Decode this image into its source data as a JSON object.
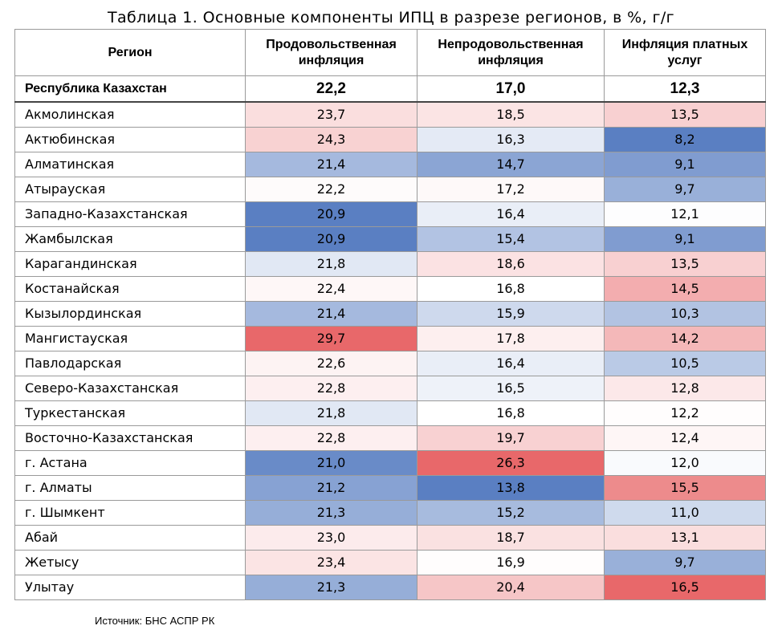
{
  "title": "Таблица 1. Основные компоненты ИПЦ в разрезе регионов, в %, г/г",
  "columns": [
    "Регион",
    "Продовольственная инфляция",
    "Непродовольственная инфляция",
    "Инфляция платных услуг"
  ],
  "total": {
    "region": "Республика Казахстан",
    "values": [
      "22,2",
      "17,0",
      "12,3"
    ]
  },
  "rows": [
    {
      "region": "Акмолинская",
      "values": [
        "23,7",
        "18,5",
        "13,5"
      ]
    },
    {
      "region": "Актюбинская",
      "values": [
        "24,3",
        "16,3",
        "8,2"
      ]
    },
    {
      "region": "Алматинская",
      "values": [
        "21,4",
        "14,7",
        "9,1"
      ]
    },
    {
      "region": "Атырауская",
      "values": [
        "22,2",
        "17,2",
        "9,7"
      ]
    },
    {
      "region": "Западно-Казахстанская",
      "values": [
        "20,9",
        "16,4",
        "12,1"
      ]
    },
    {
      "region": "Жамбылская",
      "values": [
        "20,9",
        "15,4",
        "9,1"
      ]
    },
    {
      "region": "Карагандинская",
      "values": [
        "21,8",
        "18,6",
        "13,5"
      ]
    },
    {
      "region": "Костанайская",
      "values": [
        "22,4",
        "16,8",
        "14,5"
      ]
    },
    {
      "region": "Кызылординская",
      "values": [
        "21,4",
        "15,9",
        "10,3"
      ]
    },
    {
      "region": "Мангистауская",
      "values": [
        "29,7",
        "17,8",
        "14,2"
      ]
    },
    {
      "region": "Павлодарская",
      "values": [
        "22,6",
        "16,4",
        "10,5"
      ]
    },
    {
      "region": "Северо-Казахстанская",
      "values": [
        "22,8",
        "16,5",
        "12,8"
      ]
    },
    {
      "region": "Туркестанская",
      "values": [
        "21,8",
        "16,8",
        "12,2"
      ]
    },
    {
      "region": "Восточно-Казахстанская",
      "values": [
        "22,8",
        "19,7",
        "12,4"
      ]
    },
    {
      "region": "г. Астана",
      "values": [
        "21,0",
        "26,3",
        "12,0"
      ]
    },
    {
      "region": "г. Алматы",
      "values": [
        "21,2",
        "13,8",
        "15,5"
      ]
    },
    {
      "region": "г. Шымкент",
      "values": [
        "21,3",
        "15,2",
        "11,0"
      ]
    },
    {
      "region": "Абай",
      "values": [
        "23,0",
        "18,7",
        "13,1"
      ]
    },
    {
      "region": "Жетысу",
      "values": [
        "23,4",
        "16,9",
        "9,7"
      ]
    },
    {
      "region": "Улытау",
      "values": [
        "21,3",
        "20,4",
        "16,5"
      ]
    }
  ],
  "heatmap_colors": {
    "low": "#5a7fc2",
    "mid": "#ffffff",
    "high": "#e8686a"
  },
  "source": "Источник: БНС АСПР РК"
}
